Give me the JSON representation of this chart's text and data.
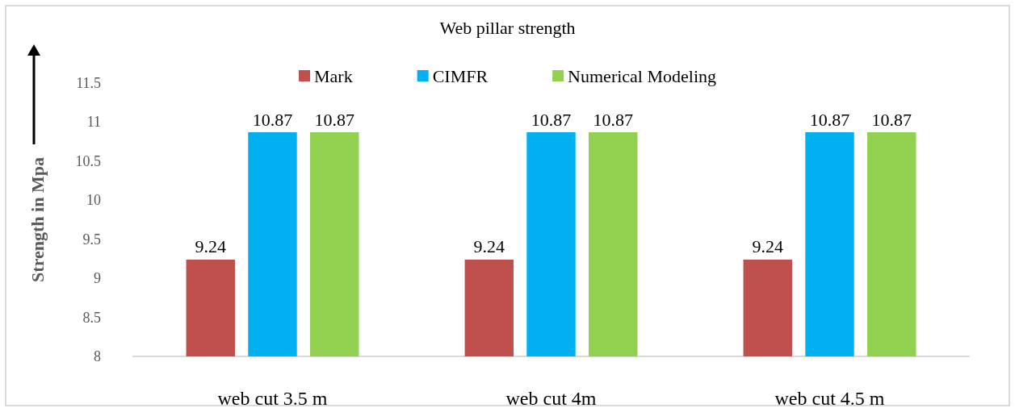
{
  "chart_data": {
    "type": "bar",
    "title": "Web pillar strength",
    "ylabel": "Strength in Mpa",
    "categories": [
      "web cut 3.5 m",
      "web cut 4m",
      "web cut 4.5 m"
    ],
    "series": [
      {
        "name": "Mark",
        "color": "#c0504d",
        "values": [
          9.24,
          9.24,
          9.24
        ]
      },
      {
        "name": "CIMFR",
        "color": "#00b0f0",
        "values": [
          10.87,
          10.87,
          10.87
        ]
      },
      {
        "name": "Numerical Modeling",
        "color": "#92d050",
        "values": [
          10.87,
          10.87,
          10.87
        ]
      }
    ],
    "ylim": [
      8,
      11.5
    ],
    "yticks": [
      8,
      8.5,
      9,
      9.5,
      10,
      10.5,
      11,
      11.5
    ],
    "grid": false,
    "legend": "top",
    "data_labels": true
  }
}
